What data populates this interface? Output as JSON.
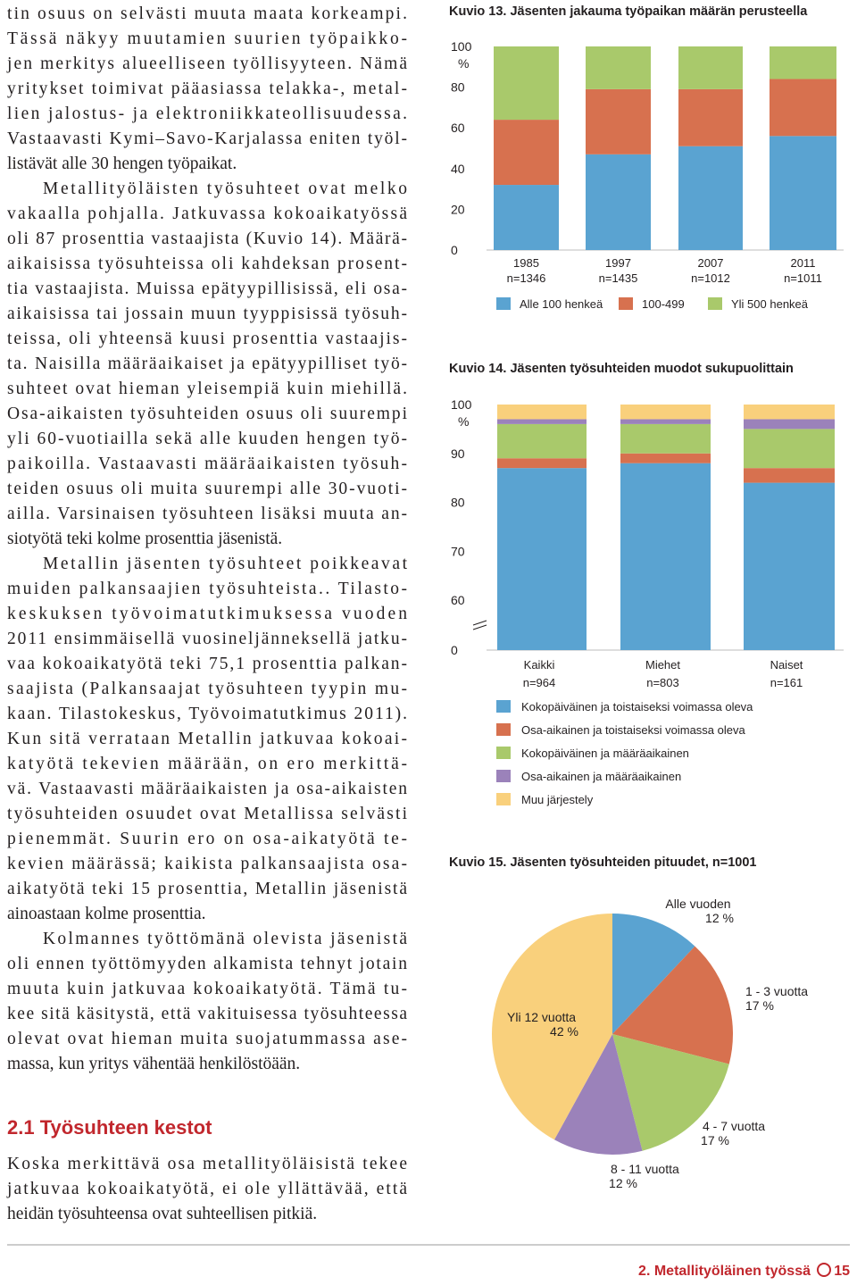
{
  "body_text": {
    "paragraphs": [
      [
        "tin osuus on selvästi muuta maata korkeampi.",
        "Tässä näkyy muutamien suurien työpaikko-",
        "jen merkitys alueelliseen työllisyyteen. Nämä",
        "yritykset toimivat pääasiassa telakka-, metal-",
        "lien jalostus- ja elektroniikkateollisuudessa.",
        "Vastaavasti Kymi–Savo-Karjalassa eniten työl-",
        "listävät alle 30 hengen työpaikat."
      ],
      [
        "Metallityöläisten työsuhteet ovat melko",
        "vakaalla pohjalla. Jatkuvassa kokoaikatyössä",
        "oli 87 prosenttia vastaajista (Kuvio 14). Määrä-",
        "aikaisissa työsuhteissa oli kahdeksan prosent-",
        "tia vastaajista. Muissa epätyypillisissä, eli osa-",
        "aikaisissa tai jossain muun tyyppisissä työsuh-",
        "teissa, oli yhteensä kuusi prosenttia vastaajis-",
        "ta. Naisilla määräaikaiset ja epätyypilliset työ-",
        "suhteet ovat hieman yleisempiä kuin miehillä.",
        "Osa-aikaisten työsuhteiden osuus oli suurempi",
        "yli 60-vuotiailla sekä alle kuuden hengen työ-",
        "paikoilla. Vastaavasti määräaikaisten työsuh-",
        "teiden osuus oli muita suurempi alle 30-vuoti-",
        "ailla. Varsinaisen työsuhteen lisäksi muuta an-",
        "siotyötä teki kolme prosenttia jäsenistä."
      ],
      [
        "Metallin jäsenten työsuhteet poikkeavat",
        "muiden palkansaajien työsuhteista.. Tilasto-",
        "keskuksen työvoimatutkimuksessa vuoden",
        "2011 ensimmäisellä vuosineljänneksellä jatku-",
        "vaa kokoaikatyötä teki 75,1 prosenttia palkan-",
        "saajista (Palkansaajat työsuhteen tyypin mu-",
        "kaan. Tilastokeskus, Työvoimatutkimus 2011).",
        "Kun sitä verrataan Metallin jatkuvaa kokoai-",
        "katyötä tekevien määrään, on ero merkittä-",
        "vä. Vastaavasti määräaikaisten ja osa-aikaisten",
        "työsuhteiden osuudet ovat Metallissa selvästi",
        "pienemmät. Suurin ero on osa-aikatyötä te-",
        "kevien määrässä; kaikista palkansaajista osa-",
        "aikatyötä teki 15 prosenttia, Metallin jäsenistä",
        "ainoastaan kolme prosenttia."
      ],
      [
        "Kolmannes työttömänä olevista jäsenistä",
        "oli ennen työttömyyden alkamista tehnyt jotain",
        "muuta kuin jatkuvaa kokoaikatyötä. Tämä tu-",
        "kee sitä käsitystä, että vakituisessa työsuhteessa",
        "olevat ovat hieman muita suojatummassa ase-",
        "massa, kun yritys vähentää henkilöstöään."
      ]
    ]
  },
  "section": {
    "heading": "2.1 Työsuhteen kestot",
    "lines": [
      "Koska merkittävä osa metallityöläisistä tekee",
      "jatkuvaa kokoaikatyötä, ei ole yllättävää, että",
      "heidän työsuhteensa ovat suhteellisen pitkiä."
    ]
  },
  "footer": {
    "chapter": "2. Metallityöläinen työssä",
    "page": "15"
  },
  "chart_data": [
    {
      "type": "bar",
      "stacked": true,
      "title": "Kuvio 13. Jäsenten jakauma työpaikan määrän perusteella",
      "categories": [
        "1985",
        "1997",
        "2007",
        "2011"
      ],
      "sample_sizes": [
        "n=1346",
        "n=1435",
        "n=1012",
        "n=1011"
      ],
      "y_unit": "%",
      "ylim": [
        0,
        100
      ],
      "yticks": [
        0,
        20,
        40,
        60,
        80,
        100
      ],
      "legend": "bottom",
      "series": [
        {
          "name": "Alle 100 henkeä",
          "color": "#5aa3d1",
          "values": [
            32,
            47,
            51,
            56
          ]
        },
        {
          "name": "100-499",
          "color": "#d7714f",
          "values": [
            32,
            32,
            28,
            28
          ]
        },
        {
          "name": "Yli 500 henkeä",
          "color": "#a9c96b",
          "values": [
            36,
            21,
            21,
            16
          ]
        }
      ]
    },
    {
      "type": "bar",
      "stacked": true,
      "title": "Kuvio 14. Jäsenten työsuhteiden muodot sukupuolittain",
      "categories": [
        "Kaikki",
        "Miehet",
        "Naiset"
      ],
      "sample_sizes": [
        "n=964",
        "n=803",
        "n=161"
      ],
      "y_unit": "%",
      "ylim": [
        0,
        100
      ],
      "yticks": [
        0,
        60,
        70,
        80,
        90,
        100
      ],
      "axis_break": [
        0,
        60
      ],
      "legend": "bottom",
      "series": [
        {
          "name": "Kokopäiväinen ja toistaiseksi voimassa oleva",
          "color": "#5aa3d1",
          "values": [
            87,
            88,
            84
          ]
        },
        {
          "name": "Osa-aikainen ja toistaiseksi voimassa oleva",
          "color": "#d7714f",
          "values": [
            2,
            2,
            3
          ]
        },
        {
          "name": "Kokopäiväinen ja määräaikainen",
          "color": "#a9c96b",
          "values": [
            7,
            6,
            8
          ]
        },
        {
          "name": "Osa-aikainen ja määräaikainen",
          "color": "#9b82ba",
          "values": [
            1,
            1,
            2
          ]
        },
        {
          "name": "Muu järjestely",
          "color": "#f9d07c",
          "values": [
            3,
            3,
            3
          ]
        }
      ]
    },
    {
      "type": "pie",
      "title": "Kuvio 15. Jäsenten työsuhteiden pituudet, n=1001",
      "categories": [
        "Alle vuoden",
        "1 - 3 vuotta",
        "4 - 7 vuotta",
        "8 - 11 vuotta",
        "Yli 12 vuotta"
      ],
      "values": [
        12,
        17,
        17,
        12,
        42
      ],
      "value_labels": [
        "12 %",
        "17 %",
        "17 %",
        "12 %",
        "42 %"
      ],
      "colors": [
        "#5aa3d1",
        "#d7714f",
        "#a9c96b",
        "#9b82ba",
        "#f9d07c"
      ]
    }
  ]
}
